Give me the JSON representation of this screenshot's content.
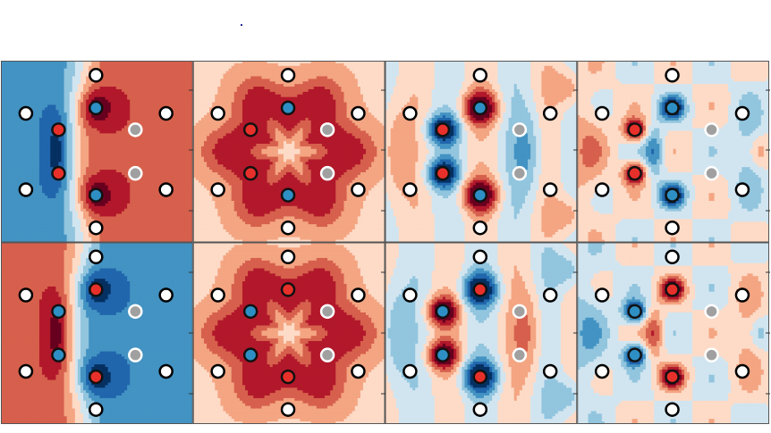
{
  "chart_data": {
    "type": "heatmap",
    "grid": {
      "rows": 2,
      "cols": 4
    },
    "colormap": [
      "#053061",
      "#2166ac",
      "#4393c3",
      "#92c5de",
      "#d1e5f0",
      "#fddbc7",
      "#f4a582",
      "#d6604d",
      "#b2182b",
      "#67001f"
    ],
    "atom_colors": {
      "ring": "#ffffff",
      "outline": "#000000",
      "red": "#e8302a",
      "blue": "#2e8fc4",
      "gray": "#a0a0a0"
    },
    "atoms": [
      {
        "x": 0.13,
        "y": 0.29,
        "type": "ring"
      },
      {
        "x": 0.3,
        "y": 0.38,
        "type": "core"
      },
      {
        "x": 0.3,
        "y": 0.62,
        "type": "core"
      },
      {
        "x": 0.13,
        "y": 0.71,
        "type": "ring"
      },
      {
        "x": 0.495,
        "y": 0.08,
        "type": "ring"
      },
      {
        "x": 0.495,
        "y": 0.26,
        "type": "core"
      },
      {
        "x": 0.495,
        "y": 0.74,
        "type": "core"
      },
      {
        "x": 0.495,
        "y": 0.92,
        "type": "ring"
      },
      {
        "x": 0.7,
        "y": 0.38,
        "type": "gray"
      },
      {
        "x": 0.7,
        "y": 0.62,
        "type": "gray"
      },
      {
        "x": 0.86,
        "y": 0.29,
        "type": "ring"
      },
      {
        "x": 0.86,
        "y": 0.71,
        "type": "ring"
      }
    ],
    "panels": [
      {
        "row": 0,
        "col": 0,
        "pattern": "dipole",
        "sign": 1,
        "cores": [
          "red",
          "red",
          "blue",
          "blue"
        ]
      },
      {
        "row": 0,
        "col": 1,
        "pattern": "ring",
        "sign": 1,
        "cores": [
          "red",
          "red",
          "blue",
          "blue"
        ]
      },
      {
        "row": 0,
        "col": 2,
        "pattern": "quad",
        "sign": 1,
        "cores": [
          "red",
          "red",
          "blue",
          "blue"
        ]
      },
      {
        "row": 0,
        "col": 3,
        "pattern": "octo",
        "sign": 1,
        "cores": [
          "red",
          "red",
          "blue",
          "blue"
        ]
      },
      {
        "row": 1,
        "col": 0,
        "pattern": "dipole",
        "sign": -1,
        "cores": [
          "blue",
          "blue",
          "red",
          "red"
        ]
      },
      {
        "row": 1,
        "col": 1,
        "pattern": "ring",
        "sign": 1,
        "cores": [
          "blue",
          "blue",
          "red",
          "red"
        ]
      },
      {
        "row": 1,
        "col": 2,
        "pattern": "quad",
        "sign": -1,
        "cores": [
          "blue",
          "blue",
          "red",
          "red"
        ]
      },
      {
        "row": 1,
        "col": 3,
        "pattern": "octo",
        "sign": -1,
        "cores": [
          "blue",
          "blue",
          "red",
          "red"
        ]
      }
    ]
  }
}
